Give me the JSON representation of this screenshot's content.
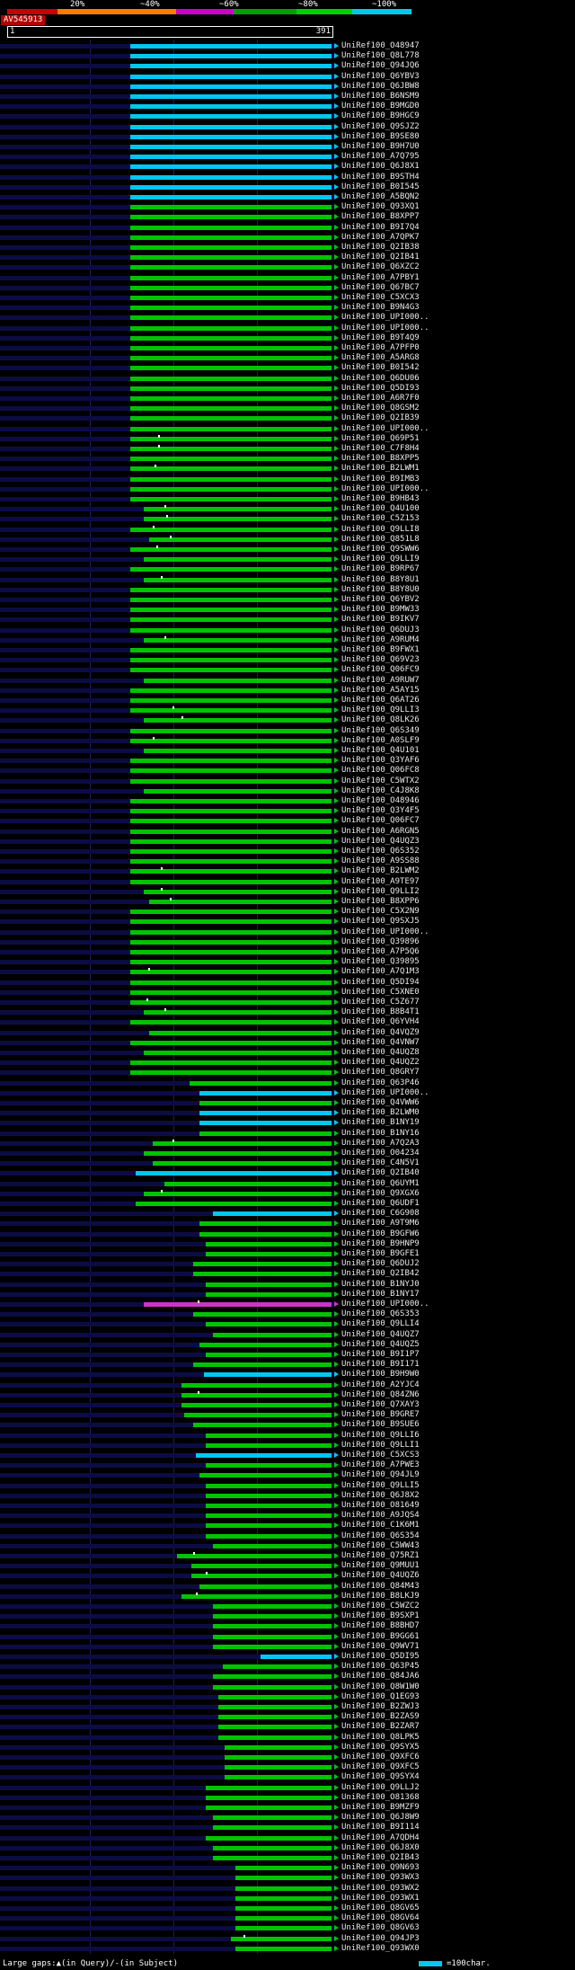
{
  "header": {
    "scale_labels": [
      "20%",
      "~40%",
      "~60%",
      "~80%",
      "~100%"
    ],
    "scale_segments": [
      {
        "c": "#c80000",
        "w": 56
      },
      {
        "c": "#ff7a00",
        "w": 132
      },
      {
        "c": "#cc00cc",
        "w": 64
      },
      {
        "c": "#00a000",
        "w": 70
      },
      {
        "c": "#00d200",
        "w": 62
      },
      {
        "c": "#00c8f0",
        "w": 66
      }
    ],
    "query_id": "AV545913",
    "ruler_start": "1",
    "ruler_end": "391"
  },
  "footer": {
    "gaps_label": "Large gaps:▲(in Query)/-(in Subject)",
    "legend_text": "=100char.",
    "legend_color": "#00c8f0"
  },
  "chart_data": {
    "type": "bar",
    "description": "BLAST hit distribution overview: each horizontal bar is one subject alignment on query AV545913 (length 391), colored by percent identity per top scale (red<20%, orange~40%, magenta~60%, green~80%, cyan~100%). White ticks mark large gaps.",
    "query_id": "AV545913",
    "query_length": 391,
    "xlim": [
      1,
      391
    ],
    "colors": {
      "c": "#00c8f0",
      "g": "#00c400",
      "m": "#cc33cc"
    },
    "color_meaning": {
      "c": "~100% identity",
      "g": "~80% identity",
      "m": "~60% identity"
    },
    "label_prefix": "UniRef100_",
    "rows": [
      [
        "O48947",
        149,
        391,
        "c"
      ],
      [
        "Q8L778",
        149,
        391,
        "c"
      ],
      [
        "Q94JQ6",
        149,
        391,
        "c"
      ],
      [
        "Q6YBV3",
        149,
        391,
        "c"
      ],
      [
        "Q6JBW8",
        149,
        391,
        "c"
      ],
      [
        "B6NSM9",
        149,
        391,
        "c"
      ],
      [
        "B9MGD0",
        149,
        391,
        "c"
      ],
      [
        "B9HGC9",
        149,
        391,
        "c"
      ],
      [
        "Q9SJZ2",
        149,
        391,
        "c"
      ],
      [
        "B9SE80",
        149,
        391,
        "c"
      ],
      [
        "B9H7U0",
        149,
        391,
        "c"
      ],
      [
        "A7Q795",
        149,
        391,
        "c"
      ],
      [
        "Q6J8X1",
        149,
        391,
        "c"
      ],
      [
        "B9STH4",
        149,
        391,
        "c"
      ],
      [
        "B0I545",
        149,
        391,
        "c"
      ],
      [
        "A5BQN2",
        149,
        391,
        "c"
      ],
      [
        "Q93XQ1",
        149,
        391,
        "g"
      ],
      [
        "B8XPP7",
        149,
        391,
        "g"
      ],
      [
        "B9I7Q4",
        149,
        391,
        "g"
      ],
      [
        "A7QPK7",
        149,
        391,
        "g"
      ],
      [
        "Q2IB38",
        149,
        391,
        "g"
      ],
      [
        "Q2IB41",
        149,
        391,
        "g"
      ],
      [
        "Q6XZC2",
        149,
        391,
        "g"
      ],
      [
        "A7PBY1",
        149,
        391,
        "g"
      ],
      [
        "Q67BC7",
        149,
        391,
        "g"
      ],
      [
        "C5XCX3",
        149,
        391,
        "g"
      ],
      [
        "B9N4G3",
        149,
        391,
        "g"
      ],
      [
        "UPI000..",
        149,
        391,
        "g"
      ],
      [
        "UPI000..",
        149,
        391,
        "g"
      ],
      [
        "B9T4Q9",
        149,
        391,
        "g"
      ],
      [
        "A7PFP0",
        149,
        391,
        "g"
      ],
      [
        "A5ARG8",
        149,
        391,
        "g"
      ],
      [
        "B0I542",
        149,
        391,
        "g"
      ],
      [
        "Q6DU06",
        149,
        391,
        "g"
      ],
      [
        "Q5DI93",
        149,
        391,
        "g"
      ],
      [
        "A6R7F0",
        149,
        391,
        "g"
      ],
      [
        "Q8GSM2",
        149,
        391,
        "g"
      ],
      [
        "Q2IB39",
        149,
        391,
        "g"
      ],
      [
        "UPI000..",
        149,
        391,
        "g"
      ],
      [
        "Q69P51",
        149,
        391,
        "g",
        [
          182
        ]
      ],
      [
        "C7F8H4",
        149,
        391,
        "g",
        [
          182
        ]
      ],
      [
        "B8XPP5",
        149,
        391,
        "g"
      ],
      [
        "B2LWM1",
        149,
        391,
        "g",
        [
          178
        ]
      ],
      [
        "B9IMB3",
        149,
        391,
        "g"
      ],
      [
        "UPI000..",
        149,
        391,
        "g"
      ],
      [
        "B9HB43",
        149,
        391,
        "g"
      ],
      [
        "Q4U100",
        165,
        391,
        "g",
        [
          190
        ]
      ],
      [
        "C5Z153",
        165,
        391,
        "g",
        [
          192
        ]
      ],
      [
        "Q9LLI8",
        149,
        391,
        "g",
        [
          176
        ]
      ],
      [
        "Q851L8",
        172,
        391,
        "g",
        [
          196
        ]
      ],
      [
        "Q9SWW6",
        149,
        391,
        "g",
        [
          180
        ]
      ],
      [
        "Q9LLI9",
        165,
        391,
        "g"
      ],
      [
        "B9RP67",
        149,
        391,
        "g"
      ],
      [
        "B8Y8U1",
        165,
        391,
        "g",
        [
          186
        ]
      ],
      [
        "B8Y8U0",
        149,
        391,
        "g"
      ],
      [
        "Q6YBV2",
        149,
        391,
        "g"
      ],
      [
        "B9MW33",
        149,
        391,
        "g"
      ],
      [
        "B9IKV7",
        149,
        391,
        "g"
      ],
      [
        "Q6DUJ3",
        149,
        391,
        "g"
      ],
      [
        "A9RUM4",
        165,
        391,
        "g",
        [
          190
        ]
      ],
      [
        "B9FWX1",
        149,
        391,
        "g"
      ],
      [
        "Q69V23",
        149,
        391,
        "g"
      ],
      [
        "Q06FC9",
        149,
        391,
        "g"
      ],
      [
        "A9RUW7",
        165,
        391,
        "g"
      ],
      [
        "A5AY15",
        149,
        391,
        "g"
      ],
      [
        "Q6AT26",
        149,
        391,
        "g"
      ],
      [
        "Q9LLI3",
        149,
        391,
        "g",
        [
          200
        ]
      ],
      [
        "Q8LK26",
        165,
        391,
        "g",
        [
          210
        ]
      ],
      [
        "Q6S349",
        149,
        391,
        "g"
      ],
      [
        "A0SLF9",
        149,
        391,
        "g",
        [
          176
        ]
      ],
      [
        "Q4U101",
        165,
        391,
        "g"
      ],
      [
        "Q3YAF6",
        149,
        391,
        "g"
      ],
      [
        "Q06FC8",
        149,
        391,
        "g"
      ],
      [
        "C5WTX2",
        149,
        391,
        "g"
      ],
      [
        "C4J8K8",
        165,
        391,
        "g"
      ],
      [
        "O48946",
        149,
        391,
        "g"
      ],
      [
        "Q3Y4F5",
        149,
        391,
        "g"
      ],
      [
        "Q06FC7",
        149,
        391,
        "g"
      ],
      [
        "A6RGN5",
        149,
        391,
        "g"
      ],
      [
        "Q4UQZ3",
        149,
        391,
        "g"
      ],
      [
        "Q6S352",
        149,
        391,
        "g"
      ],
      [
        "A9SS88",
        149,
        391,
        "g"
      ],
      [
        "B2LWM2",
        149,
        391,
        "g",
        [
          186
        ]
      ],
      [
        "A9TE97",
        149,
        391,
        "g"
      ],
      [
        "Q9LLI2",
        165,
        391,
        "g",
        [
          186
        ]
      ],
      [
        "B8XPP6",
        172,
        391,
        "g",
        [
          196
        ]
      ],
      [
        "C5X2N9",
        149,
        391,
        "g"
      ],
      [
        "Q9SXJ5",
        149,
        391,
        "g"
      ],
      [
        "UPI000..",
        149,
        391,
        "g"
      ],
      [
        "Q39896",
        149,
        391,
        "g"
      ],
      [
        "A7P5Q6",
        149,
        391,
        "g"
      ],
      [
        "Q39895",
        149,
        391,
        "g"
      ],
      [
        "A7Q1M3",
        149,
        391,
        "g",
        [
          170
        ]
      ],
      [
        "Q5DI94",
        149,
        391,
        "g"
      ],
      [
        "C5XNE0",
        149,
        391,
        "g"
      ],
      [
        "C5Z677",
        149,
        391,
        "g",
        [
          168
        ]
      ],
      [
        "B8B4T1",
        165,
        391,
        "g",
        [
          190
        ]
      ],
      [
        "Q6YVH4",
        149,
        391,
        "g"
      ],
      [
        "Q4VQZ9",
        172,
        391,
        "g"
      ],
      [
        "Q4VNW7",
        149,
        391,
        "g"
      ],
      [
        "Q4UQZ8",
        165,
        391,
        "g"
      ],
      [
        "Q4UQZ2",
        149,
        391,
        "g"
      ],
      [
        "Q8GRY7",
        149,
        391,
        "g"
      ],
      [
        "Q63P46",
        220,
        391,
        "g"
      ],
      [
        "UPI000..",
        232,
        391,
        "c"
      ],
      [
        "Q4VWW6",
        232,
        391,
        "g"
      ],
      [
        "B2LWM0",
        232,
        391,
        "c"
      ],
      [
        "B1NY19",
        232,
        391,
        "c"
      ],
      [
        "B1NY16",
        232,
        391,
        "g"
      ],
      [
        "A7Q2A3",
        176,
        391,
        "g",
        [
          200
        ]
      ],
      [
        "O04234",
        165,
        391,
        "g"
      ],
      [
        "C4N5V1",
        176,
        391,
        "g"
      ],
      [
        "Q2IB40",
        155,
        391,
        "c"
      ],
      [
        "Q6UYM1",
        190,
        391,
        "g"
      ],
      [
        "Q9XGX6",
        165,
        391,
        "g",
        [
          186
        ]
      ],
      [
        "Q6UDF1",
        155,
        391,
        "g"
      ],
      [
        "C6G908",
        248,
        391,
        "c"
      ],
      [
        "A9T9M6",
        232,
        391,
        "g"
      ],
      [
        "B9GFW6",
        232,
        391,
        "g"
      ],
      [
        "B9HNP9",
        240,
        391,
        "g"
      ],
      [
        "B9GFE1",
        240,
        391,
        "g"
      ],
      [
        "Q6DUJ2",
        225,
        391,
        "g"
      ],
      [
        "Q2IB42",
        225,
        391,
        "g"
      ],
      [
        "B1NYJ0",
        240,
        391,
        "g"
      ],
      [
        "B1NY17",
        240,
        391,
        "g"
      ],
      [
        "UPI000..",
        165,
        391,
        "m",
        [
          230
        ]
      ],
      [
        "Q6S353",
        225,
        391,
        "g"
      ],
      [
        "Q9LLI4",
        240,
        391,
        "g"
      ],
      [
        "Q4UQZ7",
        248,
        391,
        "g"
      ],
      [
        "Q4UQZ5",
        232,
        391,
        "g"
      ],
      [
        "B9I1P7",
        240,
        391,
        "g"
      ],
      [
        "B9I171",
        225,
        391,
        "g"
      ],
      [
        "B9H9W0",
        237,
        391,
        "c"
      ],
      [
        "A2YJC4",
        210,
        391,
        "g"
      ],
      [
        "Q84ZN6",
        210,
        391,
        "g",
        [
          230
        ]
      ],
      [
        "Q7XAY3",
        210,
        391,
        "g"
      ],
      [
        "B9GRE7",
        214,
        391,
        "g"
      ],
      [
        "B9SUE6",
        225,
        391,
        "g"
      ],
      [
        "Q9LLI6",
        240,
        391,
        "g"
      ],
      [
        "Q9LLI1",
        240,
        391,
        "g"
      ],
      [
        "C5XCS3",
        228,
        391,
        "c"
      ],
      [
        "A7PWE3",
        240,
        391,
        "g"
      ],
      [
        "Q94JL9",
        232,
        391,
        "g"
      ],
      [
        "Q9LLI5",
        240,
        391,
        "g"
      ],
      [
        "Q6J8X2",
        240,
        391,
        "g"
      ],
      [
        "O81649",
        240,
        391,
        "g"
      ],
      [
        "A9JQS4",
        240,
        391,
        "g"
      ],
      [
        "C1K6M1",
        240,
        391,
        "g"
      ],
      [
        "Q6S354",
        240,
        391,
        "g"
      ],
      [
        "C5WW43",
        248,
        391,
        "g"
      ],
      [
        "Q75RZ1",
        205,
        391,
        "g",
        [
          225
        ]
      ],
      [
        "Q9MUU1",
        222,
        391,
        "g"
      ],
      [
        "Q4UQZ6",
        222,
        391,
        "g",
        [
          240
        ]
      ],
      [
        "Q84M43",
        232,
        391,
        "g"
      ],
      [
        "B8LKJ9",
        210,
        391,
        "g",
        [
          228
        ]
      ],
      [
        "C5WZC2",
        248,
        391,
        "g"
      ],
      [
        "B9SXP1",
        248,
        391,
        "g"
      ],
      [
        "B8BHD7",
        248,
        391,
        "g"
      ],
      [
        "B9GG61",
        248,
        391,
        "g"
      ],
      [
        "Q9WV71",
        248,
        391,
        "g"
      ],
      [
        "Q5DI95",
        305,
        391,
        "c"
      ],
      [
        "Q63P45",
        260,
        391,
        "g"
      ],
      [
        "Q84JA6",
        248,
        391,
        "g"
      ],
      [
        "Q8W1W0",
        248,
        391,
        "g"
      ],
      [
        "Q1EG93",
        255,
        391,
        "g"
      ],
      [
        "B2ZWJ3",
        255,
        391,
        "g"
      ],
      [
        "B2ZAS9",
        255,
        391,
        "g"
      ],
      [
        "B2ZAR7",
        255,
        391,
        "g"
      ],
      [
        "Q8LPK5",
        255,
        391,
        "g"
      ],
      [
        "Q9SYX5",
        262,
        391,
        "g"
      ],
      [
        "Q9XFC6",
        262,
        391,
        "g"
      ],
      [
        "Q9XFC5",
        262,
        391,
        "g"
      ],
      [
        "Q9SYX4",
        262,
        391,
        "g"
      ],
      [
        "Q9LLJ2",
        240,
        391,
        "g"
      ],
      [
        "O81368",
        240,
        391,
        "g"
      ],
      [
        "B9MZF9",
        240,
        391,
        "g"
      ],
      [
        "Q6J8W9",
        248,
        391,
        "g"
      ],
      [
        "B9I114",
        248,
        391,
        "g"
      ],
      [
        "A7QDH4",
        240,
        391,
        "g"
      ],
      [
        "Q6J8X0",
        248,
        391,
        "g"
      ],
      [
        "Q2IB43",
        248,
        391,
        "g"
      ],
      [
        "Q9N693",
        275,
        391,
        "g"
      ],
      [
        "Q93WX3",
        275,
        391,
        "g"
      ],
      [
        "Q93WX2",
        275,
        391,
        "g"
      ],
      [
        "Q93WX1",
        275,
        391,
        "g"
      ],
      [
        "Q8GV65",
        275,
        391,
        "g"
      ],
      [
        "Q8GV64",
        275,
        391,
        "g"
      ],
      [
        "Q8GV63",
        275,
        391,
        "g"
      ],
      [
        "Q94JP3",
        270,
        391,
        "g",
        [
          285
        ]
      ],
      [
        "Q93WX0",
        275,
        391,
        "g"
      ]
    ]
  }
}
